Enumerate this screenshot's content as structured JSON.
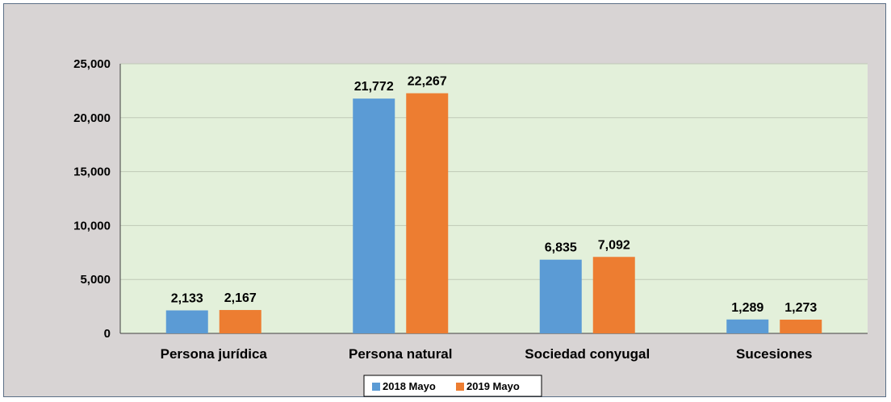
{
  "chart_data": {
    "type": "bar",
    "title": "",
    "xlabel": "",
    "ylabel": "",
    "categories": [
      "Persona jurídica",
      "Persona natural",
      "Sociedad conyugal",
      "Sucesiones"
    ],
    "series": [
      {
        "name": "2018 Mayo",
        "color": "#5b9bd5",
        "values": [
          2133,
          21772,
          6835,
          1289
        ],
        "labels": [
          "2,133",
          "21,772",
          "6,835",
          "1,289"
        ]
      },
      {
        "name": "2019 Mayo",
        "color": "#ed7d31",
        "values": [
          2167,
          22267,
          7092,
          1273
        ],
        "labels": [
          "2,167",
          "22,267",
          "7,092",
          "1,273"
        ]
      }
    ],
    "ylim": [
      0,
      25000
    ],
    "yticks": [
      0,
      5000,
      10000,
      15000,
      20000,
      25000
    ],
    "ytick_labels": [
      "0",
      "5,000",
      "10,000",
      "15,000",
      "20,000",
      "25,000"
    ],
    "grid": true,
    "legend_position": "bottom",
    "plot_background": "#e3f0da",
    "frame_background": "#d8d4d4"
  }
}
